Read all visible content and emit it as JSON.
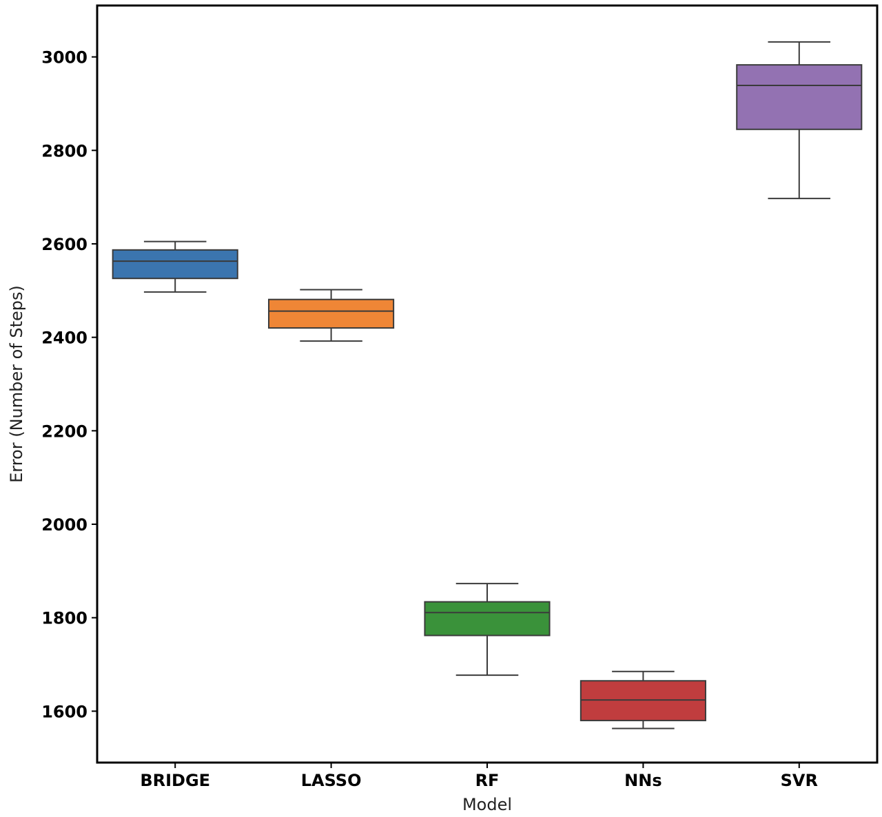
{
  "chart_data": {
    "type": "box",
    "title": "",
    "xlabel": "Model",
    "ylabel": "Error (Number of Steps)",
    "ylim": [
      1490,
      3110
    ],
    "yticks": [
      1600,
      1800,
      2000,
      2200,
      2400,
      2600,
      2800,
      3000
    ],
    "grid": false,
    "categories": [
      "BRIDGE",
      "LASSO",
      "RF",
      "NNs",
      "SVR"
    ],
    "series": [
      {
        "category": "BRIDGE",
        "min": 2497,
        "q1": 2526,
        "median": 2563,
        "q3": 2587,
        "max": 2605,
        "color": "#3b75af"
      },
      {
        "category": "LASSO",
        "min": 2392,
        "q1": 2420,
        "median": 2456,
        "q3": 2481,
        "max": 2502,
        "color": "#ef8636"
      },
      {
        "category": "RF",
        "min": 1677,
        "q1": 1762,
        "median": 1811,
        "q3": 1834,
        "max": 1873,
        "color": "#3a923a"
      },
      {
        "category": "NNs",
        "min": 1563,
        "q1": 1580,
        "median": 1624,
        "q3": 1665,
        "max": 1685,
        "color": "#c03d3e"
      },
      {
        "category": "SVR",
        "min": 2697,
        "q1": 2845,
        "median": 2939,
        "q3": 2983,
        "max": 3032,
        "color": "#9372b2"
      }
    ]
  }
}
